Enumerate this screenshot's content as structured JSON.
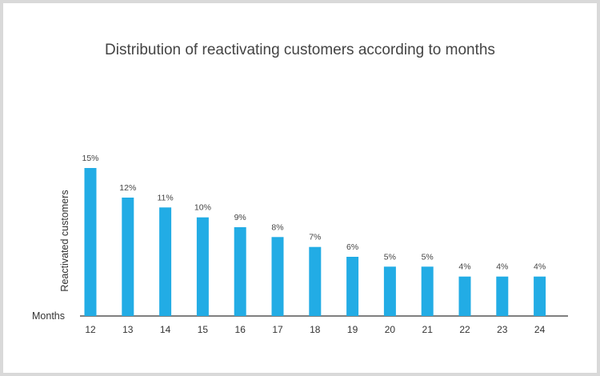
{
  "chart_data": {
    "type": "bar",
    "title": "Distribution of reactivating customers according to months",
    "xlabel": "Months",
    "ylabel": "Reactivated customers",
    "categories": [
      "12",
      "13",
      "14",
      "15",
      "16",
      "17",
      "18",
      "19",
      "20",
      "21",
      "22",
      "23",
      "24"
    ],
    "values": [
      15,
      12,
      11,
      10,
      9,
      8,
      7,
      6,
      5,
      5,
      4,
      4,
      4
    ],
    "value_labels": [
      "15%",
      "12%",
      "11%",
      "10%",
      "9%",
      "8%",
      "7%",
      "6%",
      "5%",
      "5%",
      "4%",
      "4%",
      "4%"
    ],
    "ylim": [
      0,
      15
    ],
    "grid": false,
    "legend": "none",
    "bar_color": "#22ace5"
  }
}
